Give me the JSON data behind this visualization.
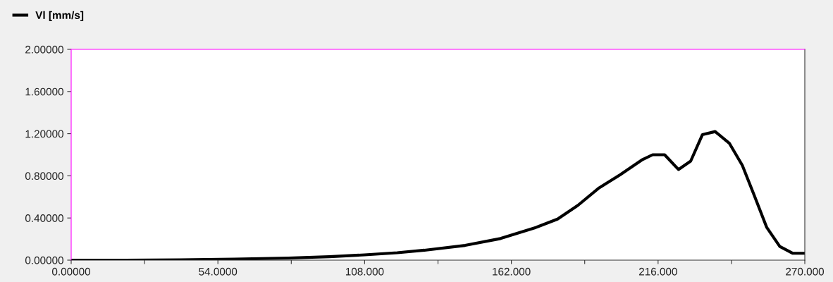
{
  "chart_data": {
    "type": "line",
    "legend": "top left",
    "grid": false,
    "marker": "none",
    "line_style": "solid",
    "x": [
      0,
      20,
      40,
      60,
      80,
      95,
      108,
      120,
      130,
      145,
      158,
      171,
      179,
      186.5,
      194,
      202,
      210,
      214,
      218.4,
      223.5,
      228,
      232.3,
      237,
      242.2,
      247,
      251.3,
      256,
      260.8,
      265.6,
      270
    ],
    "series": [
      {
        "name": "Vl [mm/s]",
        "color": "#000000",
        "values": [
          0,
          0,
          0.003,
          0.01,
          0.02,
          0.033,
          0.05,
          0.07,
          0.094,
          0.14,
          0.205,
          0.31,
          0.39,
          0.52,
          0.68,
          0.81,
          0.95,
          1.0,
          1.0,
          0.86,
          0.94,
          1.19,
          1.22,
          1.11,
          0.9,
          0.62,
          0.31,
          0.13,
          0.065,
          0.065
        ]
      }
    ],
    "xlim": [
      0,
      270
    ],
    "xticks": [
      {
        "value": 0,
        "label": "0.00000"
      },
      {
        "value": 27,
        "label": null
      },
      {
        "value": 54,
        "label": "54.0000"
      },
      {
        "value": 81,
        "label": null
      },
      {
        "value": 108,
        "label": "108.000"
      },
      {
        "value": 135,
        "label": null
      },
      {
        "value": 162,
        "label": "162.000"
      },
      {
        "value": 189,
        "label": null
      },
      {
        "value": 216,
        "label": "216.000"
      },
      {
        "value": 243,
        "label": null
      },
      {
        "value": 270,
        "label": "270.000"
      }
    ],
    "ylim": [
      0,
      2
    ],
    "yticks": [
      {
        "value": 0,
        "label": "0.00000"
      },
      {
        "value": 0.4,
        "label": "0.40000"
      },
      {
        "value": 0.8,
        "label": "0.80000"
      },
      {
        "value": 1.2,
        "label": "1.20000"
      },
      {
        "value": 1.6,
        "label": "1.60000"
      },
      {
        "value": 2,
        "label": "2.00000"
      }
    ]
  }
}
